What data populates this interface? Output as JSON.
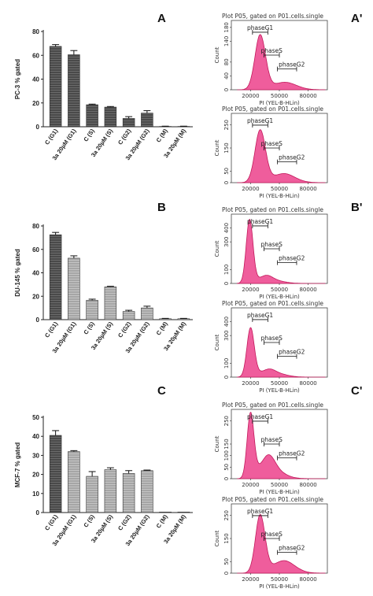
{
  "chart_data": [
    {
      "type": "bar",
      "panel": "A",
      "ylabel": "PC-3 % gated",
      "ylim": [
        0,
        80
      ],
      "yticks": [
        0,
        20,
        40,
        60,
        80
      ],
      "categories": [
        "C (G1)",
        "3a 20µM (G1)",
        "C (S)",
        "3a 20µM (S)",
        "C (G2)",
        "3a 20µM (G2)",
        "C (M)",
        "3a 20µM (M)"
      ],
      "values": [
        67.5,
        60.5,
        18.5,
        16.5,
        7.0,
        11.5,
        0.3,
        0.3
      ],
      "errors": [
        1.5,
        3.5,
        0.5,
        0.5,
        1.5,
        2.0,
        0.2,
        0.2
      ]
    },
    {
      "type": "bar",
      "panel": "B",
      "ylabel": "DU-145 % gated",
      "ylim": [
        0,
        80
      ],
      "yticks": [
        0,
        20,
        40,
        60,
        80
      ],
      "categories": [
        "C (G1)",
        "3a 20µM (G1)",
        "C (S)",
        "3a 20µM (S)",
        "C (G2)",
        "3a 20µM (G2)",
        "C (M)",
        "3a 20µM (M)"
      ],
      "values": [
        72.5,
        52.5,
        16.5,
        28.0,
        7.0,
        10.0,
        0.8,
        0.8
      ],
      "errors": [
        2.0,
        2.0,
        1.0,
        0.5,
        1.0,
        1.5,
        0.3,
        0.3
      ]
    },
    {
      "type": "bar",
      "panel": "C",
      "ylabel": "MCF-7 % gated",
      "ylim": [
        0,
        50
      ],
      "yticks": [
        0,
        10,
        20,
        30,
        40,
        50
      ],
      "categories": [
        "C (G1)",
        "3a 20µM (G1)",
        "C (S)",
        "3a 20µM (S)",
        "C (G2)",
        "3a 20µM (G2)",
        "C (M)",
        "3a 20µM (M)"
      ],
      "values": [
        40.5,
        32.0,
        19.0,
        22.5,
        20.5,
        22.0,
        0.3,
        0.3
      ],
      "errors": [
        2.5,
        0.5,
        2.5,
        1.0,
        1.5,
        0.3,
        0.1,
        0.1
      ]
    },
    {
      "type": "area",
      "panel": "A'",
      "title": "Plot P05, gated on P01.cells.single",
      "xlabel": "PI (YEL-B-HLin)",
      "ylabel": "Count",
      "xticks": [
        20000,
        50000,
        80000
      ],
      "xlim": [
        0,
        100000
      ],
      "ylim": [
        0,
        200
      ],
      "yticks": [
        0,
        40,
        80,
        140,
        180
      ],
      "gates": [
        "phaseG1",
        "phaseS",
        "phaseG2"
      ],
      "curve": {
        "peak1_x": 30000,
        "peak1_y": 150,
        "peak1_w": 5500,
        "peak2_x": 56000,
        "peak2_y": 12,
        "peak2_w": 9000,
        "tail": 10
      }
    },
    {
      "type": "area",
      "panel": "A'",
      "title": "Plot P05, gated on P01.cells.single",
      "xlabel": "PI (YEL-B-HLin)",
      "ylabel": "Count",
      "xticks": [
        20000,
        50000,
        80000
      ],
      "xlim": [
        0,
        100000
      ],
      "ylim": [
        0,
        300
      ],
      "yticks": [
        0,
        50,
        150,
        250
      ],
      "gates": [
        "phaseG1",
        "phaseS",
        "phaseG2"
      ],
      "curve": {
        "peak1_x": 30000,
        "peak1_y": 215,
        "peak1_w": 5500,
        "peak2_x": 55000,
        "peak2_y": 25,
        "peak2_w": 9000,
        "tail": 15
      }
    },
    {
      "type": "area",
      "panel": "B'",
      "title": "Plot P05, gated on P01.cells.single",
      "xlabel": "PI (YEL-B-HLin)",
      "ylabel": "Count",
      "xticks": [
        20000,
        50000,
        80000
      ],
      "xlim": [
        0,
        100000
      ],
      "ylim": [
        0,
        500
      ],
      "yticks": [
        0,
        100,
        300,
        400
      ],
      "gates": [
        "phaseG1",
        "phaseS",
        "phaseG2"
      ],
      "curve": {
        "peak1_x": 19000,
        "peak1_y": 440,
        "peak1_w": 3500,
        "peak2_x": 37000,
        "peak2_y": 35,
        "peak2_w": 6000,
        "tail": 25
      }
    },
    {
      "type": "area",
      "panel": "B'",
      "title": "Plot P05, gated on P01.cells.single",
      "xlabel": "PI (YEL-B-HLin)",
      "ylabel": "Count",
      "xticks": [
        20000,
        50000,
        80000
      ],
      "xlim": [
        0,
        100000
      ],
      "ylim": [
        0,
        500
      ],
      "yticks": [
        0,
        100,
        300,
        400
      ],
      "gates": [
        "phaseG1",
        "phaseS",
        "phaseG2"
      ],
      "curve": {
        "peak1_x": 20000,
        "peak1_y": 330,
        "peak1_w": 3800,
        "peak2_x": 40000,
        "peak2_y": 30,
        "peak2_w": 6000,
        "tail": 30
      }
    },
    {
      "type": "area",
      "panel": "C'",
      "title": "Plot P05, gated on P01.cells.single",
      "xlabel": "PI (YEL-B-HLin)",
      "ylabel": "Count",
      "xticks": [
        20000,
        50000,
        80000
      ],
      "xlim": [
        0,
        100000
      ],
      "ylim": [
        0,
        300
      ],
      "yticks": [
        0,
        50,
        100,
        150,
        250
      ],
      "gates": [
        "phaseG1",
        "phaseS",
        "phaseG2"
      ],
      "curve": {
        "peak1_x": 20000,
        "peak1_y": 255,
        "peak1_w": 3500,
        "peak2_x": 39000,
        "peak2_y": 70,
        "peak2_w": 6500,
        "tail": 35
      }
    },
    {
      "type": "area",
      "panel": "C'",
      "title": "Plot P05, gated on P01.cells.single",
      "xlabel": "PI (YEL-B-HLin)",
      "ylabel": "Count",
      "xticks": [
        20000,
        50000,
        80000
      ],
      "xlim": [
        0,
        100000
      ],
      "ylim": [
        0,
        300
      ],
      "yticks": [
        0,
        50,
        150,
        250
      ],
      "gates": [
        "phaseG1",
        "phaseS",
        "phaseG2"
      ],
      "curve": {
        "peak1_x": 30000,
        "peak1_y": 235,
        "peak1_w": 5000,
        "peak2_x": 55000,
        "peak2_y": 35,
        "peak2_w": 9000,
        "tail": 20
      }
    }
  ],
  "colors": {
    "dark_bar": "#4a4a4a",
    "light_bar": "#a9a9a9",
    "histogram_fill": "#ef5d9c",
    "histogram_stroke": "#c2185b",
    "axis": "#222222"
  }
}
